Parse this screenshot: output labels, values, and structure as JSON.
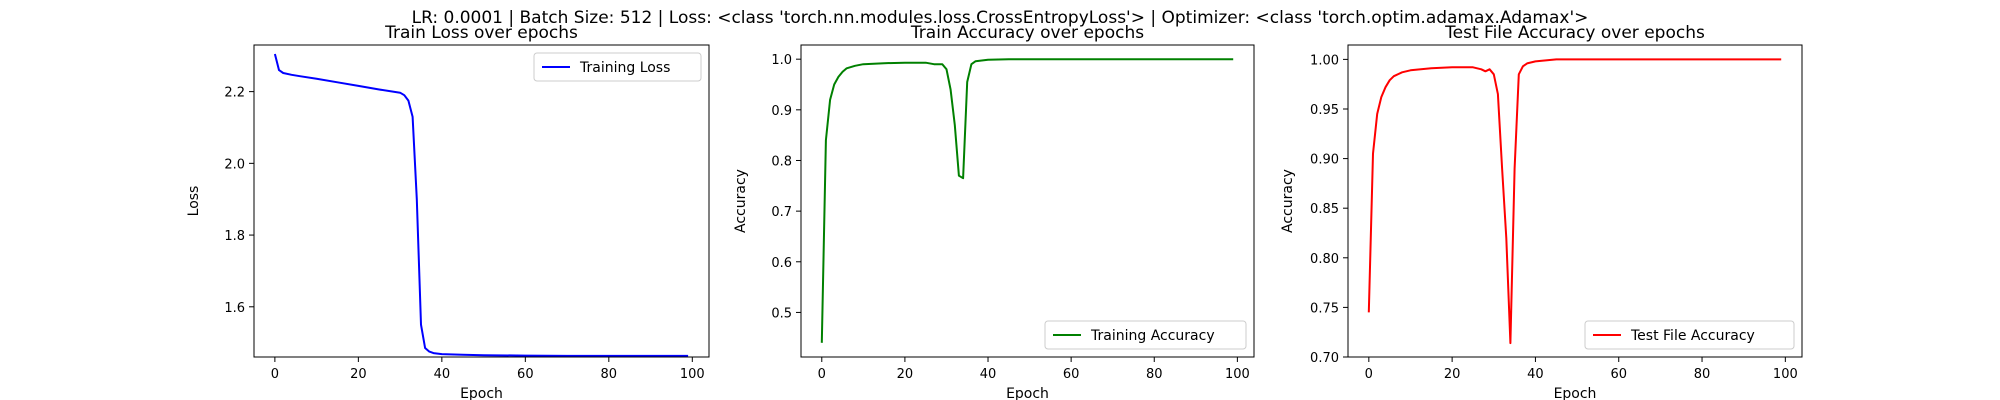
{
  "figure": {
    "suptitle": "LR: 0.0001 | Batch Size: 512 | Loss: <class 'torch.nn.modules.loss.CrossEntropyLoss'> | Optimizer: <class 'torch.optim.adamax.Adamax'>"
  },
  "chart_data": [
    {
      "type": "line",
      "title": "Train Loss over epochs",
      "xlabel": "Epoch",
      "ylabel": "Loss",
      "xlim": [
        -5,
        104
      ],
      "ylim": [
        1.46,
        2.33
      ],
      "xticks": [
        0,
        20,
        40,
        60,
        80,
        100
      ],
      "xtick_labels": [
        "0",
        "20",
        "40",
        "60",
        "80",
        "100"
      ],
      "yticks": [
        1.6,
        1.8,
        2.0,
        2.2
      ],
      "ytick_labels": [
        "1.6",
        "1.8",
        "2.0",
        "2.2"
      ],
      "grid": false,
      "legend": "top-right",
      "series": [
        {
          "name": "Training Loss",
          "color": "#0000ff",
          "x": [
            0,
            1,
            2,
            4,
            6,
            10,
            15,
            20,
            25,
            30,
            31,
            32,
            33,
            34,
            35,
            36,
            37,
            38,
            40,
            45,
            50,
            60,
            70,
            80,
            90,
            99
          ],
          "y": [
            2.305,
            2.26,
            2.252,
            2.247,
            2.243,
            2.236,
            2.226,
            2.216,
            2.206,
            2.197,
            2.19,
            2.175,
            2.13,
            1.9,
            1.55,
            1.485,
            1.475,
            1.471,
            1.468,
            1.466,
            1.465,
            1.464,
            1.463,
            1.463,
            1.463,
            1.463
          ]
        }
      ]
    },
    {
      "type": "line",
      "title": "Train Accuracy over epochs",
      "xlabel": "Epoch",
      "ylabel": "Accuracy",
      "xlim": [
        -5,
        104
      ],
      "ylim": [
        0.412,
        1.028
      ],
      "xticks": [
        0,
        20,
        40,
        60,
        80,
        100
      ],
      "xtick_labels": [
        "0",
        "20",
        "40",
        "60",
        "80",
        "100"
      ],
      "yticks": [
        0.5,
        0.6,
        0.7,
        0.8,
        0.9,
        1.0
      ],
      "ytick_labels": [
        "0.5",
        "0.6",
        "0.7",
        "0.8",
        "0.9",
        "1.0"
      ],
      "grid": false,
      "legend": "bottom-right",
      "series": [
        {
          "name": "Training Accuracy",
          "color": "#008000",
          "x": [
            0,
            1,
            2,
            3,
            4,
            5,
            6,
            8,
            10,
            15,
            20,
            25,
            27,
            29,
            30,
            31,
            32,
            33,
            34,
            35,
            36,
            37,
            38,
            40,
            45,
            50,
            60,
            70,
            80,
            90,
            99
          ],
          "y": [
            0.44,
            0.84,
            0.92,
            0.95,
            0.965,
            0.975,
            0.982,
            0.987,
            0.99,
            0.992,
            0.993,
            0.993,
            0.99,
            0.99,
            0.98,
            0.94,
            0.87,
            0.77,
            0.765,
            0.955,
            0.99,
            0.996,
            0.997,
            0.999,
            1.0,
            1.0,
            1.0,
            1.0,
            1.0,
            1.0,
            1.0
          ]
        }
      ]
    },
    {
      "type": "line",
      "title": "Test File Accuracy over epochs",
      "xlabel": "Epoch",
      "ylabel": "Accuracy",
      "xlim": [
        -5,
        104
      ],
      "ylim": [
        0.7,
        1.0145
      ],
      "xticks": [
        0,
        20,
        40,
        60,
        80,
        100
      ],
      "xtick_labels": [
        "0",
        "20",
        "40",
        "60",
        "80",
        "100"
      ],
      "yticks": [
        0.7,
        0.75,
        0.8,
        0.85,
        0.9,
        0.95,
        1.0
      ],
      "ytick_labels": [
        "0.70",
        "0.75",
        "0.80",
        "0.85",
        "0.90",
        "0.95",
        "1.00"
      ],
      "grid": false,
      "legend": "bottom-right",
      "series": [
        {
          "name": "Test File Accuracy",
          "color": "#ff0000",
          "x": [
            0,
            1,
            2,
            3,
            4,
            5,
            6,
            8,
            10,
            15,
            20,
            25,
            27,
            28,
            29,
            30,
            31,
            32,
            33,
            34,
            35,
            36,
            37,
            38,
            40,
            45,
            50,
            60,
            70,
            80,
            90,
            99
          ],
          "y": [
            0.745,
            0.905,
            0.945,
            0.962,
            0.972,
            0.979,
            0.983,
            0.987,
            0.989,
            0.991,
            0.992,
            0.992,
            0.99,
            0.988,
            0.99,
            0.985,
            0.965,
            0.89,
            0.82,
            0.714,
            0.89,
            0.985,
            0.993,
            0.996,
            0.998,
            1.0,
            1.0,
            1.0,
            1.0,
            1.0,
            1.0,
            1.0
          ]
        }
      ]
    }
  ]
}
